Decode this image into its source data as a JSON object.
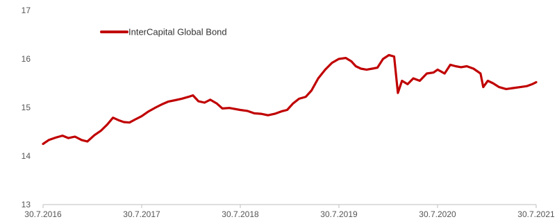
{
  "chart_data": {
    "type": "line",
    "title": "",
    "xlabel": "",
    "ylabel": "",
    "ylim": [
      13,
      17
    ],
    "yticks": [
      13,
      14,
      15,
      16,
      17
    ],
    "xtick_labels": [
      "30.7.2016",
      "30.7.2017",
      "30.7.2018",
      "30.7.2019",
      "30.7.2020",
      "30.7.2021"
    ],
    "xlim": [
      "2016-07-30",
      "2021-07-30"
    ],
    "grid": false,
    "legend_position": "top-left",
    "series": [
      {
        "name": "InterCapital Global Bond",
        "color": "#c00000",
        "points": [
          [
            "2016-07-30",
            14.25
          ],
          [
            "2016-08-20",
            14.33
          ],
          [
            "2016-09-15",
            14.38
          ],
          [
            "2016-10-10",
            14.42
          ],
          [
            "2016-11-01",
            14.37
          ],
          [
            "2016-11-25",
            14.4
          ],
          [
            "2016-12-20",
            14.33
          ],
          [
            "2017-01-10",
            14.3
          ],
          [
            "2017-02-05",
            14.43
          ],
          [
            "2017-03-01",
            14.52
          ],
          [
            "2017-03-25",
            14.65
          ],
          [
            "2017-04-15",
            14.79
          ],
          [
            "2017-05-05",
            14.74
          ],
          [
            "2017-05-25",
            14.7
          ],
          [
            "2017-06-15",
            14.69
          ],
          [
            "2017-07-05",
            14.75
          ],
          [
            "2017-07-30",
            14.82
          ],
          [
            "2017-08-25",
            14.92
          ],
          [
            "2017-09-20",
            15.0
          ],
          [
            "2017-10-15",
            15.07
          ],
          [
            "2017-11-05",
            15.12
          ],
          [
            "2017-12-01",
            15.15
          ],
          [
            "2017-12-25",
            15.18
          ],
          [
            "2018-01-20",
            15.22
          ],
          [
            "2018-02-05",
            15.25
          ],
          [
            "2018-02-25",
            15.13
          ],
          [
            "2018-03-20",
            15.1
          ],
          [
            "2018-04-10",
            15.16
          ],
          [
            "2018-05-05",
            15.08
          ],
          [
            "2018-05-25",
            14.98
          ],
          [
            "2018-06-20",
            14.99
          ],
          [
            "2018-07-30",
            14.95
          ],
          [
            "2018-08-25",
            14.93
          ],
          [
            "2018-09-20",
            14.88
          ],
          [
            "2018-10-15",
            14.87
          ],
          [
            "2018-11-10",
            14.84
          ],
          [
            "2018-12-05",
            14.87
          ],
          [
            "2018-12-30",
            14.92
          ],
          [
            "2019-01-20",
            14.95
          ],
          [
            "2019-02-10",
            15.08
          ],
          [
            "2019-03-05",
            15.18
          ],
          [
            "2019-03-30",
            15.22
          ],
          [
            "2019-04-20",
            15.35
          ],
          [
            "2019-05-15",
            15.6
          ],
          [
            "2019-06-10",
            15.78
          ],
          [
            "2019-07-05",
            15.92
          ],
          [
            "2019-07-30",
            16.0
          ],
          [
            "2019-08-25",
            16.02
          ],
          [
            "2019-09-15",
            15.95
          ],
          [
            "2019-10-01",
            15.85
          ],
          [
            "2019-10-20",
            15.8
          ],
          [
            "2019-11-10",
            15.78
          ],
          [
            "2019-12-01",
            15.8
          ],
          [
            "2019-12-20",
            15.82
          ],
          [
            "2020-01-10",
            16.0
          ],
          [
            "2020-02-01",
            16.08
          ],
          [
            "2020-02-20",
            16.05
          ],
          [
            "2020-03-05",
            15.3
          ],
          [
            "2020-03-20",
            15.55
          ],
          [
            "2020-04-10",
            15.48
          ],
          [
            "2020-05-01",
            15.6
          ],
          [
            "2020-05-25",
            15.55
          ],
          [
            "2020-06-20",
            15.7
          ],
          [
            "2020-07-15",
            15.72
          ],
          [
            "2020-07-30",
            15.78
          ],
          [
            "2020-08-25",
            15.7
          ],
          [
            "2020-09-15",
            15.88
          ],
          [
            "2020-10-05",
            15.85
          ],
          [
            "2020-10-25",
            15.83
          ],
          [
            "2020-11-15",
            15.85
          ],
          [
            "2020-12-10",
            15.8
          ],
          [
            "2021-01-05",
            15.7
          ],
          [
            "2021-01-15",
            15.42
          ],
          [
            "2021-02-01",
            15.55
          ],
          [
            "2021-02-20",
            15.5
          ],
          [
            "2021-03-15",
            15.42
          ],
          [
            "2021-04-10",
            15.38
          ],
          [
            "2021-05-05",
            15.4
          ],
          [
            "2021-06-01",
            15.42
          ],
          [
            "2021-06-25",
            15.44
          ],
          [
            "2021-07-15",
            15.48
          ],
          [
            "2021-07-30",
            15.52
          ]
        ]
      }
    ]
  }
}
